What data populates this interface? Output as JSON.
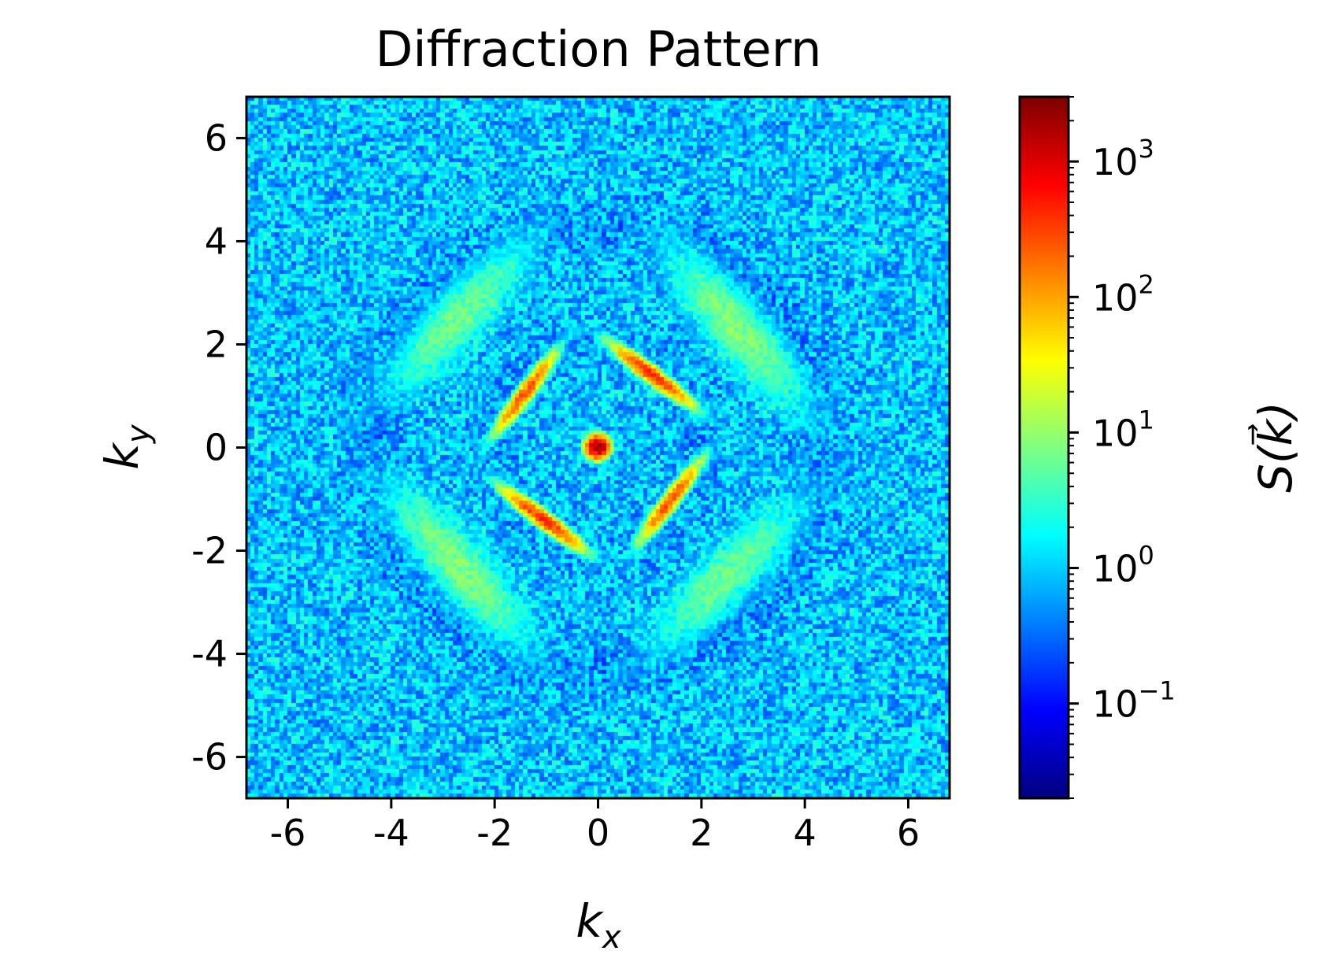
{
  "chart_data": {
    "type": "heatmap",
    "title": "Diffraction Pattern",
    "xlabel": {
      "base": "k",
      "sub": "x"
    },
    "ylabel": {
      "base": "k",
      "sub": "y"
    },
    "xlim": [
      -6.8,
      6.8
    ],
    "ylim": [
      -6.8,
      6.8
    ],
    "xticks": [
      -6,
      -4,
      -2,
      0,
      2,
      4,
      6
    ],
    "yticks": [
      -6,
      -4,
      -2,
      0,
      2,
      4,
      6
    ],
    "xtick_labels": [
      "-6",
      "-4",
      "-2",
      "0",
      "2",
      "4",
      "6"
    ],
    "ytick_labels": [
      "-6",
      "-4",
      "-2",
      "0",
      "2",
      "4",
      "6"
    ],
    "colormap": "jet",
    "color_scale": "log",
    "colorbar": {
      "label": "S(k⃗)",
      "range": [
        0.02,
        3000
      ],
      "tick_values": [
        0.1,
        1,
        10,
        100,
        1000
      ],
      "tick_labels": [
        {
          "base": "10",
          "exp": "−1"
        },
        {
          "base": "10",
          "exp": "0"
        },
        {
          "base": "10",
          "exp": "1"
        },
        {
          "base": "10",
          "exp": "2"
        },
        {
          "base": "10",
          "exp": "3"
        }
      ]
    },
    "background_level": 1.0,
    "peaks": [
      {
        "kx": 0.0,
        "ky": 0.0,
        "value": 2500
      },
      {
        "kx": 1.05,
        "ky": 1.4,
        "value": 400
      },
      {
        "kx": -1.05,
        "ky": -1.4,
        "value": 400
      },
      {
        "kx": -1.4,
        "ky": 1.05,
        "value": 250
      },
      {
        "kx": 1.4,
        "ky": -1.05,
        "value": 250
      },
      {
        "kx": 2.7,
        "ky": 2.3,
        "value": 8
      },
      {
        "kx": -2.7,
        "ky": -2.3,
        "value": 8
      },
      {
        "kx": -2.7,
        "ky": 2.5,
        "value": 6
      },
      {
        "kx": 2.5,
        "ky": -2.5,
        "value": 6
      }
    ]
  }
}
